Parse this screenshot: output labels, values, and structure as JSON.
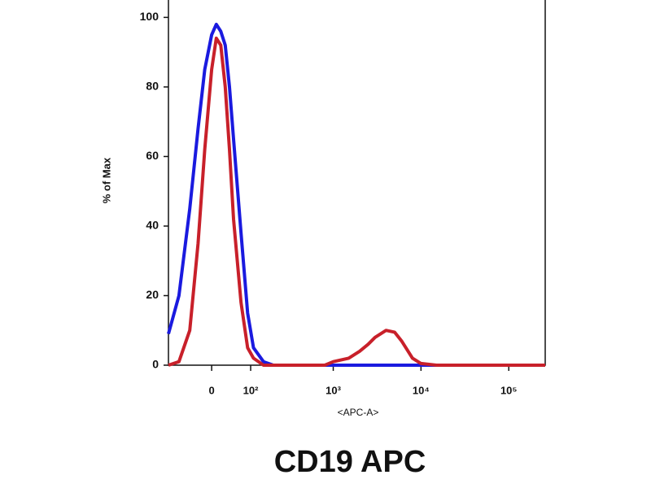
{
  "chart_data": {
    "type": "line",
    "title": "CD19 APC",
    "xlabel": "<APC-A>",
    "ylabel": "% of Max",
    "xscale": "arcsinh",
    "xlim": [
      -115,
      260000
    ],
    "ylim": [
      0,
      105
    ],
    "xticks": [
      0,
      {
        "value": 100,
        "label": "10²"
      },
      {
        "value": 1000,
        "label": "10³"
      },
      {
        "value": 10000,
        "label": "10⁴"
      },
      {
        "value": 100000,
        "label": "10⁵"
      }
    ],
    "yticks": [
      0,
      20,
      40,
      60,
      80,
      100
    ],
    "x": [
      -115,
      -80,
      -50,
      -30,
      -15,
      0,
      10,
      20,
      30,
      40,
      50,
      70,
      90,
      110,
      150,
      200,
      300,
      500,
      800,
      1000,
      1500,
      2000,
      2500,
      3000,
      4000,
      5000,
      6000,
      8000,
      10000,
      15000,
      30000,
      100000,
      260000
    ],
    "series": [
      {
        "color": "#1a1adf",
        "values": [
          9,
          20,
          45,
          68,
          85,
          95,
          98,
          96,
          92,
          80,
          65,
          38,
          15,
          5,
          1,
          0,
          0,
          0,
          0,
          0,
          0,
          0,
          0,
          0,
          0,
          0,
          0,
          0,
          0,
          0,
          0,
          0,
          0
        ]
      },
      {
        "color": "#c8202a",
        "values": [
          0,
          1,
          10,
          35,
          62,
          85,
          94,
          92,
          80,
          62,
          42,
          18,
          5,
          2,
          0,
          0,
          0,
          0,
          0,
          1,
          2,
          4,
          6,
          8,
          10,
          9.5,
          7,
          2,
          0.5,
          0,
          0,
          0,
          0
        ]
      }
    ]
  }
}
